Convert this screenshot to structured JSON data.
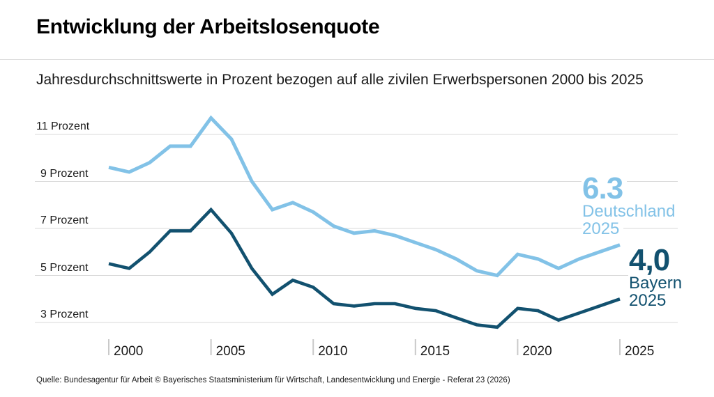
{
  "header": {
    "title": "Entwicklung der Arbeitslosenquote",
    "subtitle": "Jahresdurchschnittswerte in Prozent bezogen auf alle zivilen Erwerbspersonen 2000 bis 2025"
  },
  "chart_data": {
    "type": "line",
    "x": [
      2000,
      2001,
      2002,
      2003,
      2004,
      2005,
      2006,
      2007,
      2008,
      2009,
      2010,
      2011,
      2012,
      2013,
      2014,
      2015,
      2016,
      2017,
      2018,
      2019,
      2020,
      2021,
      2022,
      2023,
      2024,
      2025
    ],
    "series": [
      {
        "name": "Deutschland",
        "color": "#82c2e7",
        "values": [
          9.6,
          9.4,
          9.8,
          10.5,
          10.5,
          11.7,
          10.8,
          9.0,
          7.8,
          8.1,
          7.7,
          7.1,
          6.8,
          6.9,
          6.7,
          6.4,
          6.1,
          5.7,
          5.2,
          5.0,
          5.9,
          5.7,
          5.3,
          5.7,
          6.0,
          6.3
        ]
      },
      {
        "name": "Bayern",
        "color": "#12516f",
        "values": [
          5.5,
          5.3,
          6.0,
          6.9,
          6.9,
          7.8,
          6.8,
          5.3,
          4.2,
          4.8,
          4.5,
          3.8,
          3.7,
          3.8,
          3.8,
          3.6,
          3.5,
          3.2,
          2.9,
          2.8,
          3.6,
          3.5,
          3.1,
          3.4,
          3.7,
          4.0
        ]
      }
    ],
    "y_ticks": [
      {
        "value": 11,
        "label": "11 Prozent"
      },
      {
        "value": 9,
        "label": "9 Prozent"
      },
      {
        "value": 7,
        "label": "7 Prozent"
      },
      {
        "value": 5,
        "label": "5 Prozent"
      },
      {
        "value": 3,
        "label": "3 Prozent"
      }
    ],
    "x_ticks": [
      {
        "value": 2000,
        "label": "2000"
      },
      {
        "value": 2005,
        "label": "2005"
      },
      {
        "value": 2010,
        "label": "2010"
      },
      {
        "value": 2015,
        "label": "2015"
      },
      {
        "value": 2020,
        "label": "2020"
      },
      {
        "value": 2025,
        "label": "2025"
      }
    ],
    "xlim": [
      2000,
      2025
    ],
    "ylim": [
      2.5,
      12
    ],
    "grid": "horizontal",
    "grid_color": "#d9d9d9",
    "tick_color": "#c9c9c9",
    "legend_position": "right-annotations",
    "annotations": [
      {
        "series": "Deutschland",
        "value_label": "6.3",
        "line1": "Deutschland",
        "line2": "2025"
      },
      {
        "series": "Bayern",
        "value_label": "4,0",
        "line1": "Bayern",
        "line2": "2025"
      }
    ]
  },
  "footer": {
    "source": "Quelle: Bundesagentur für Arbeit © Bayerisches Staatsministerium für Wirtschaft, Landesentwicklung und Energie - Referat 23 (2026)"
  }
}
